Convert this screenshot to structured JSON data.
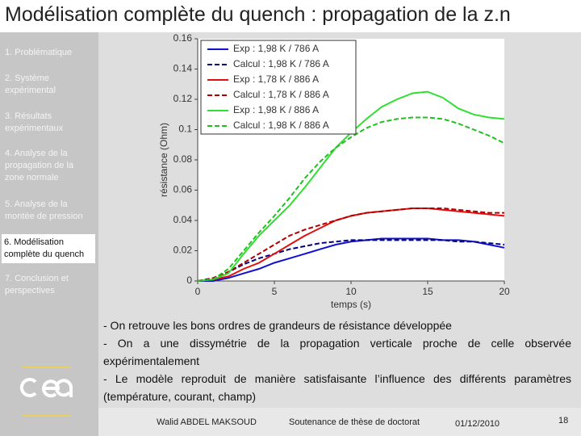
{
  "slide": {
    "title": "Modélisation complète du quench : propagation de la z.n",
    "nav": [
      "1. Problématique",
      "2. Système expérimental",
      "3. Résultats expérimentaux",
      "4. Analyse de la propagation de la zone normale",
      "5. Analyse de la montée de pression",
      "6. Modélisation complète du quench",
      "7. Conclusion et perspectives"
    ],
    "active_nav": 5,
    "bullets": [
      "- On retrouve les bons ordres de grandeurs de résistance développée",
      "- On a une dissymétrie de la propagation verticale proche de celle observée expérimentalement",
      "- Le modèle reproduit de manière satisfaisante l’influence des différents paramètres (température, courant, champ)"
    ],
    "footer": {
      "author": "Walid ABDEL MAKSOUD",
      "event": "Soutenance de thèse de doctorat",
      "date": "01/12/2010",
      "page": "18"
    }
  },
  "chart_data": {
    "type": "line",
    "x_label": "temps (s)",
    "y_label": "résistance (Ohm)",
    "x": [
      0,
      1,
      2,
      3,
      4,
      5,
      6,
      7,
      8,
      9,
      10,
      11,
      12,
      13,
      14,
      15,
      16,
      17,
      18,
      19,
      20
    ],
    "xlim": [
      0,
      20
    ],
    "xticks": [
      0,
      5,
      10,
      15,
      20
    ],
    "ylim": [
      0,
      0.16
    ],
    "yticks": [
      0,
      0.02,
      0.04,
      0.06,
      0.08,
      0.1,
      0.12,
      0.14,
      0.16
    ],
    "legend": "upper left",
    "series": [
      {
        "name": "Exp : 1,98 K / 786 A",
        "color": "#1010d0",
        "linestyle": "solid",
        "values": [
          0,
          0,
          0.002,
          0.005,
          0.008,
          0.012,
          0.015,
          0.018,
          0.021,
          0.024,
          0.026,
          0.027,
          0.028,
          0.028,
          0.028,
          0.028,
          0.027,
          0.027,
          0.026,
          0.024,
          0.022
        ]
      },
      {
        "name": "Calcul : 1,98 K / 786 A",
        "color": "#000080",
        "linestyle": "dashed",
        "values": [
          0,
          0.001,
          0.006,
          0.011,
          0.015,
          0.018,
          0.021,
          0.023,
          0.025,
          0.026,
          0.027,
          0.027,
          0.027,
          0.027,
          0.027,
          0.027,
          0.027,
          0.026,
          0.026,
          0.025,
          0.024
        ]
      },
      {
        "name": "Exp : 1,78 K / 886 A",
        "color": "#e01010",
        "linestyle": "solid",
        "values": [
          0,
          0.001,
          0.003,
          0.008,
          0.012,
          0.018,
          0.024,
          0.03,
          0.035,
          0.04,
          0.043,
          0.045,
          0.046,
          0.047,
          0.048,
          0.048,
          0.047,
          0.046,
          0.045,
          0.044,
          0.043
        ]
      },
      {
        "name": "Calcul : 1,78 K / 886 A",
        "color": "#b00000",
        "linestyle": "dashed",
        "values": [
          0,
          0.002,
          0.006,
          0.012,
          0.018,
          0.024,
          0.03,
          0.034,
          0.037,
          0.04,
          0.043,
          0.045,
          0.046,
          0.047,
          0.048,
          0.048,
          0.048,
          0.047,
          0.046,
          0.045,
          0.045
        ]
      },
      {
        "name": "Exp : 1,98 K / 886 A",
        "color": "#30e030",
        "linestyle": "solid",
        "values": [
          0,
          0.001,
          0.005,
          0.018,
          0.03,
          0.04,
          0.05,
          0.062,
          0.075,
          0.088,
          0.098,
          0.107,
          0.115,
          0.12,
          0.124,
          0.125,
          0.121,
          0.114,
          0.11,
          0.108,
          0.107
        ]
      },
      {
        "name": "Calcul : 1,98 K / 886 A",
        "color": "#20c020",
        "linestyle": "dashed",
        "values": [
          0,
          0.001,
          0.008,
          0.02,
          0.032,
          0.043,
          0.055,
          0.068,
          0.079,
          0.088,
          0.095,
          0.101,
          0.105,
          0.107,
          0.108,
          0.108,
          0.107,
          0.104,
          0.1,
          0.096,
          0.091
        ]
      }
    ]
  }
}
